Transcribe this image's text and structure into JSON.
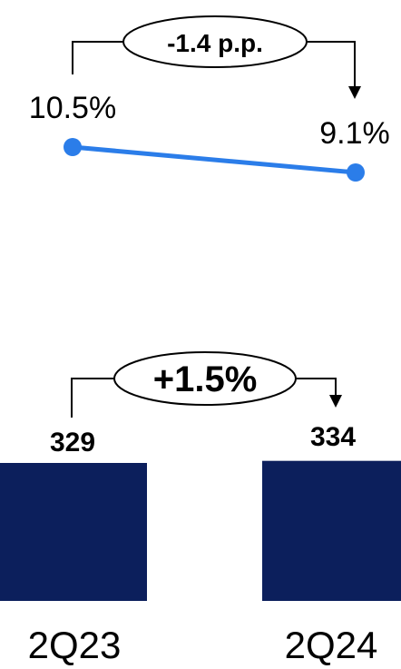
{
  "chart_data": [
    {
      "type": "line",
      "categories": [
        "2Q23",
        "2Q24"
      ],
      "series": [
        {
          "values": [
            10.5,
            9.1
          ],
          "labels": [
            "10.5%",
            "9.1%"
          ]
        }
      ],
      "annotation": "-1.4 p.p.",
      "colors": {
        "line": "#2b7de9"
      }
    },
    {
      "type": "bar",
      "categories": [
        "2Q23",
        "2Q24"
      ],
      "values": [
        329,
        334
      ],
      "labels": [
        "329",
        "334"
      ],
      "annotation": "+1.5%",
      "colors": {
        "bar": "#0c1f5c"
      }
    }
  ]
}
